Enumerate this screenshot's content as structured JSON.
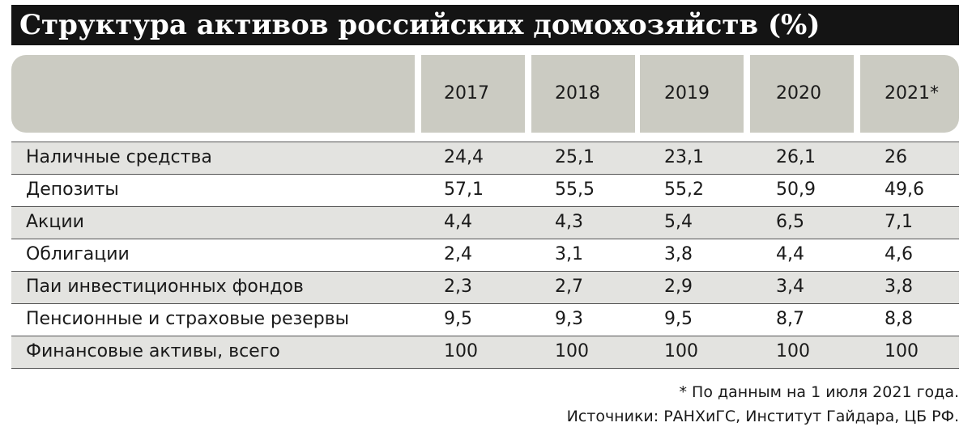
{
  "title": "Структура активов российских домохозяйств (%)",
  "chart_data": {
    "type": "table",
    "title": "Структура активов российских домохозяйств (%)",
    "columns": [
      "2017",
      "2018",
      "2019",
      "2020",
      "2021*"
    ],
    "rows": [
      {
        "label": "Наличные средства",
        "values": [
          "24,4",
          "25,1",
          "23,1",
          "26,1",
          "26"
        ]
      },
      {
        "label": "Депозиты",
        "values": [
          "57,1",
          "55,5",
          "55,2",
          "50,9",
          "49,6"
        ]
      },
      {
        "label": "Акции",
        "values": [
          "4,4",
          "4,3",
          "5,4",
          "6,5",
          "7,1"
        ]
      },
      {
        "label": "Облигации",
        "values": [
          "2,4",
          "3,1",
          "3,8",
          "4,4",
          "4,6"
        ]
      },
      {
        "label": "Паи инвестиционных фондов",
        "values": [
          "2,3",
          "2,7",
          "2,9",
          "3,4",
          "3,8"
        ]
      },
      {
        "label": "Пенсионные и страховые резервы",
        "values": [
          "9,5",
          "9,3",
          "9,5",
          "8,7",
          "8,8"
        ]
      },
      {
        "label": "Финансовые активы, всего",
        "values": [
          "100",
          "100",
          "100",
          "100",
          "100"
        ]
      }
    ]
  },
  "footnotes": {
    "note": "* По данным на 1 июля 2021 года.",
    "sources": "Источники: РАНХиГС, Институт Гайдара, ЦБ РФ."
  }
}
